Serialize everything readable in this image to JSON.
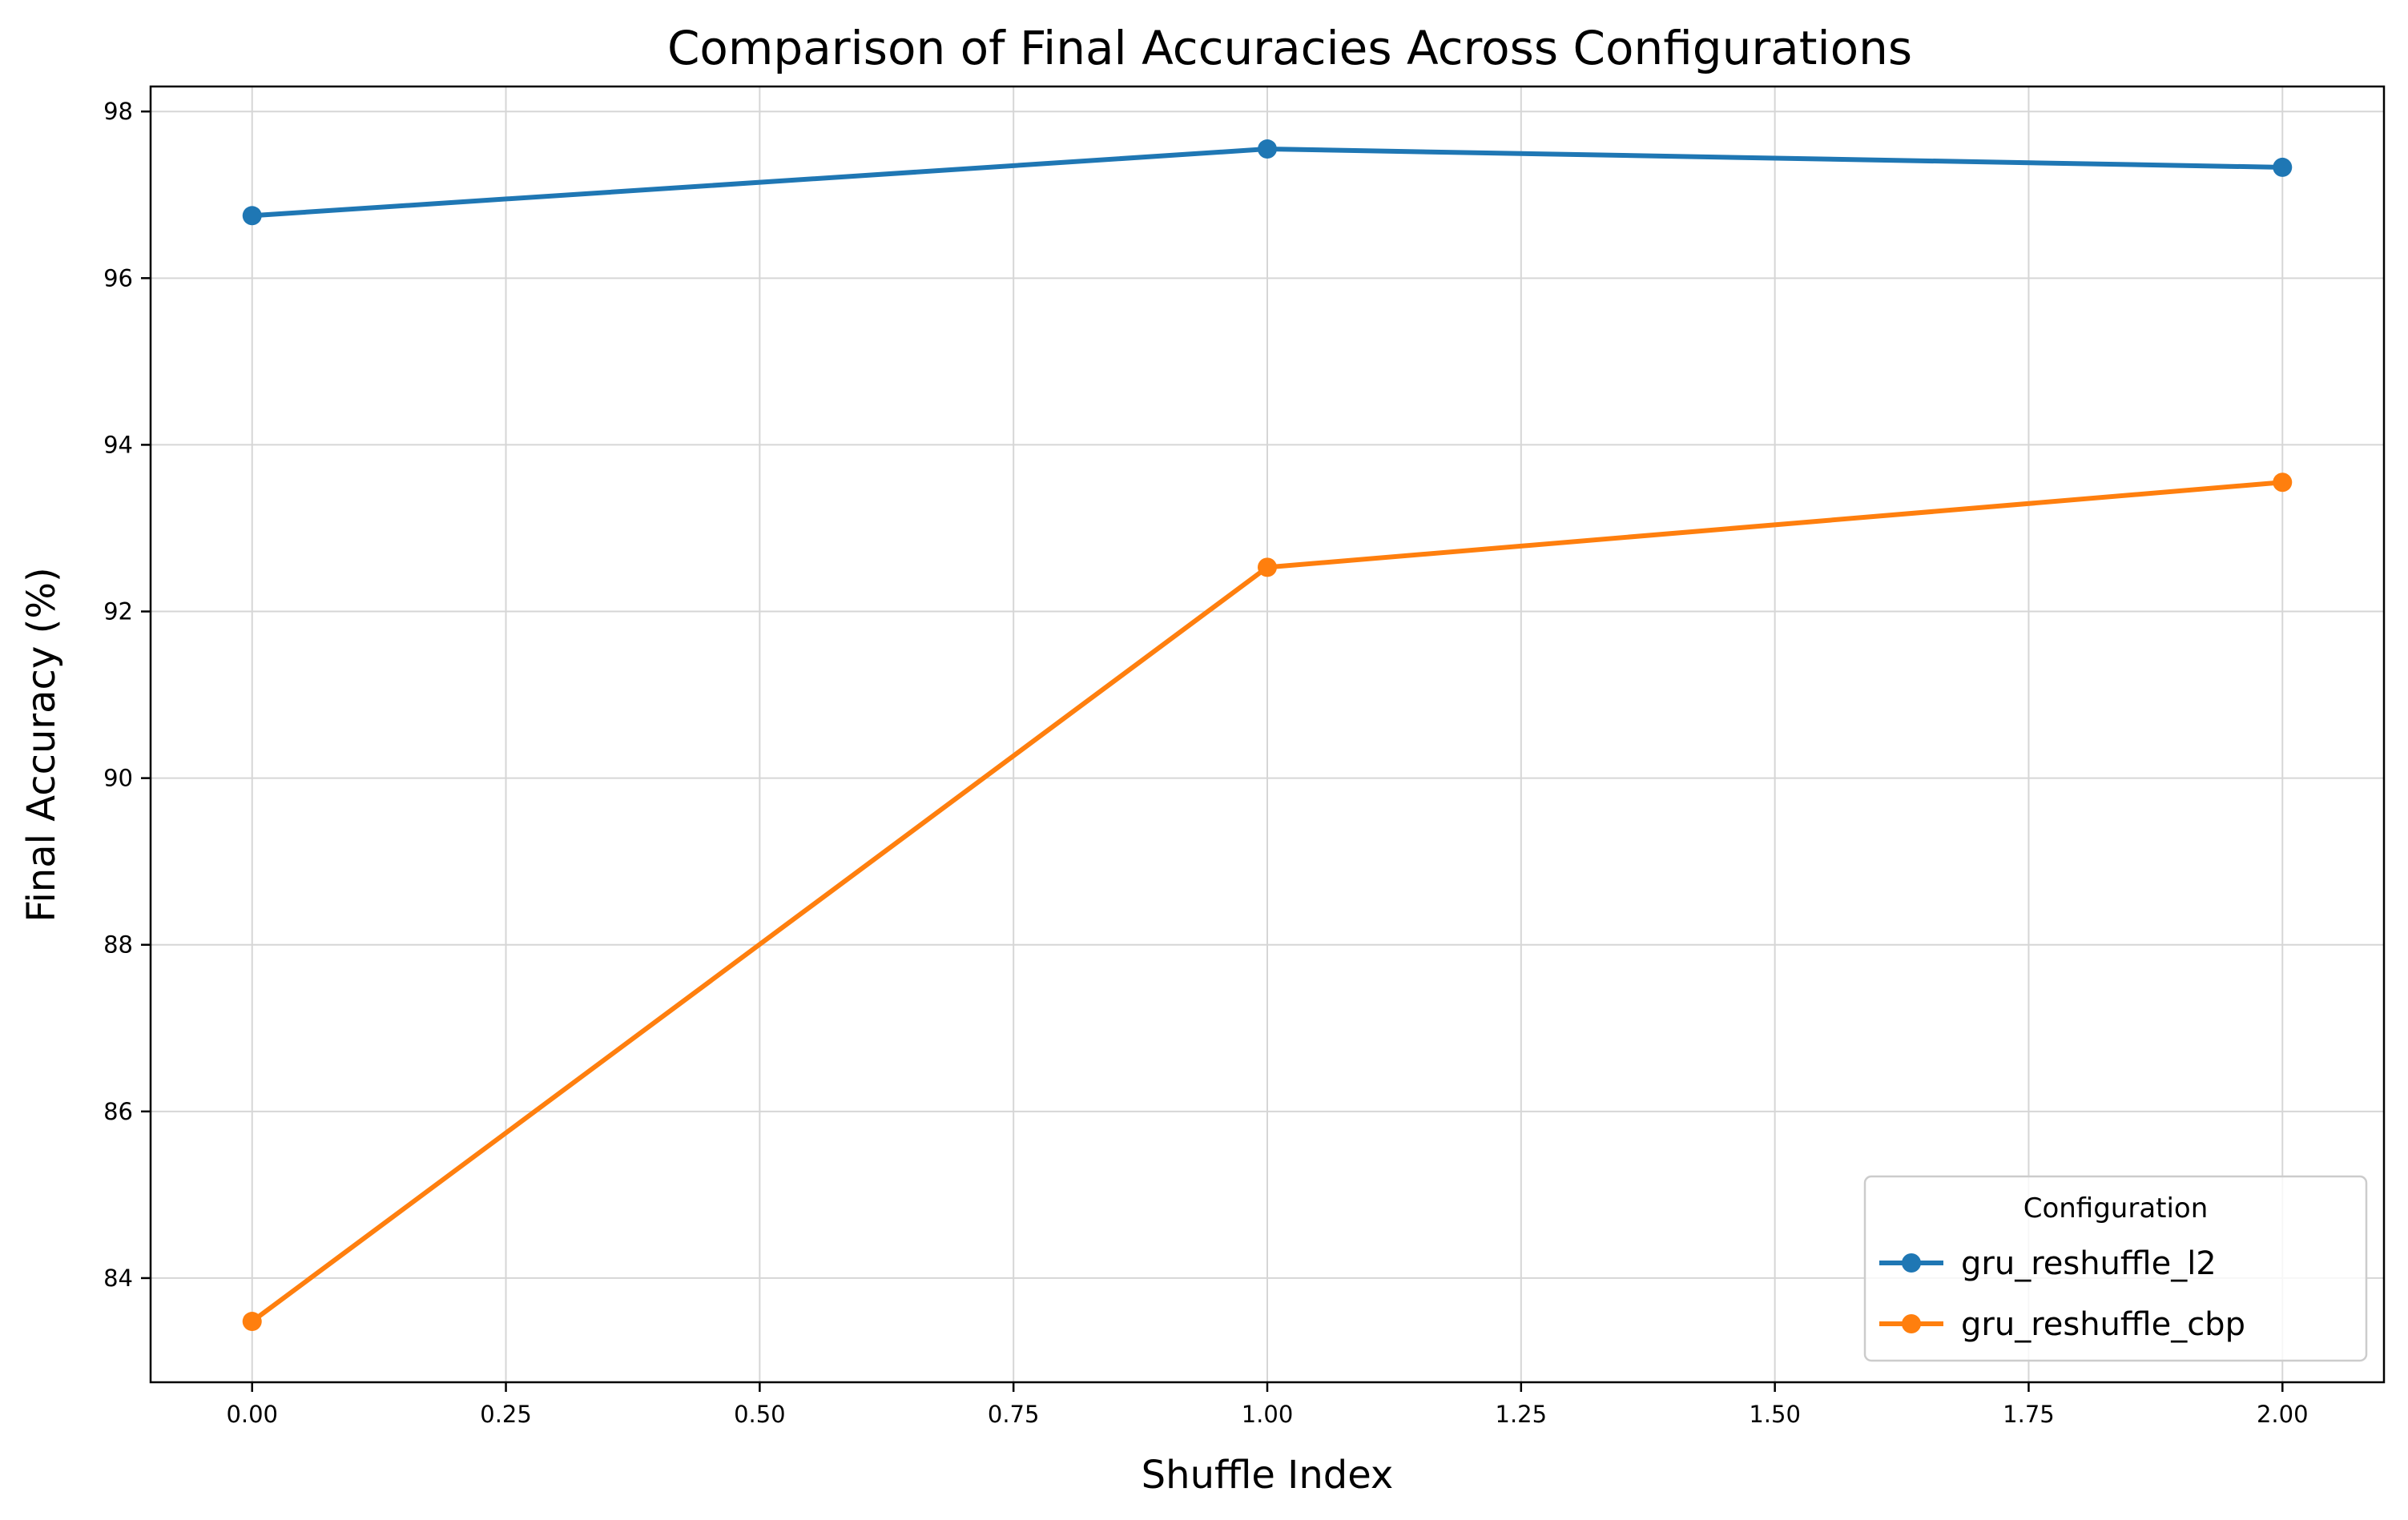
{
  "chart_data": {
    "type": "line",
    "title": "Comparison of Final Accuracies Across Configurations",
    "xlabel": "Shuffle Index",
    "ylabel": "Final Accuracy (%)",
    "x": [
      0,
      1,
      2
    ],
    "xlim": [
      -0.1,
      2.1
    ],
    "ylim": [
      82.75,
      98.3
    ],
    "xticks": [
      0.0,
      0.25,
      0.5,
      0.75,
      1.0,
      1.25,
      1.5,
      1.75,
      2.0
    ],
    "xtick_labels": [
      "0.00",
      "0.25",
      "0.50",
      "0.75",
      "1.00",
      "1.25",
      "1.50",
      "1.75",
      "2.00"
    ],
    "yticks": [
      84,
      86,
      88,
      90,
      92,
      94,
      96,
      98
    ],
    "ytick_labels": [
      "84",
      "86",
      "88",
      "90",
      "92",
      "94",
      "96",
      "98"
    ],
    "grid": true,
    "legend": {
      "title": "Configuration",
      "placement": "lower-right"
    },
    "series": [
      {
        "name": "gru_reshuffle_l2",
        "color": "#1f77b4",
        "marker": "circle",
        "values": [
          96.75,
          97.55,
          97.33
        ]
      },
      {
        "name": "gru_reshuffle_cbp",
        "color": "#ff7f0e",
        "marker": "circle",
        "values": [
          83.48,
          92.53,
          93.55
        ]
      }
    ]
  }
}
